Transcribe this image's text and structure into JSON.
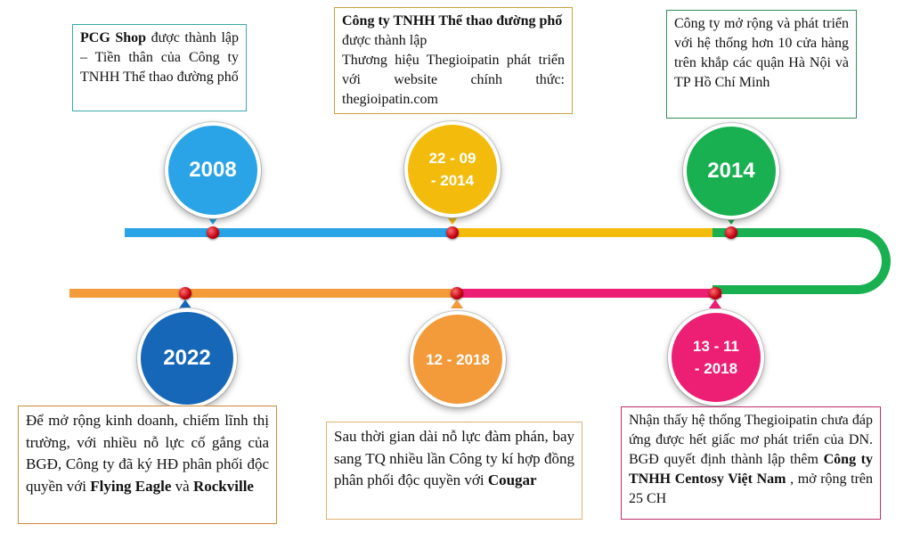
{
  "colors": {
    "blue_light": "#2aa4e6",
    "yellow": "#f3bc0d",
    "green": "#18b050",
    "magenta": "#ec1f74",
    "orange": "#f39a3a",
    "navy": "#1667b8",
    "dot_red": "#c00010"
  },
  "milestones": [
    {
      "label": "2008",
      "box": {
        "lead_bold": "PCG Shop",
        "lead_rest": " được thành lập – Tiền thân của Công ty TNHH Thể thao đường phố"
      }
    },
    {
      "label": "22 - 09 - 2014",
      "label_line1": "22 - 09",
      "label_line2": "- 2014",
      "box": {
        "title_bold": "Công ty TNHH Thể thao đường phố",
        "title_rest": " được thành lập",
        "body": "Thương hiệu Thegioipatin phát triển với website chính thức: thegioipatin.com"
      }
    },
    {
      "label": "2014",
      "box": {
        "text": "Công ty mở rộng và phát triển với hệ thống hơn 10 cửa hàng trên khắp các quận Hà Nội và TP Hồ Chí Minh"
      }
    },
    {
      "label": "2022",
      "box": {
        "text": "Để mở rộng kinh doanh, chiếm lĩnh thị trường, với nhiều nỗ lực cố gắng của BGĐ, Công ty đã ký HĐ phân phối độc quyền với ",
        "bold1": "Flying Eagle",
        "mid": " và ",
        "bold2": "Rockville"
      }
    },
    {
      "label": "12 - 2018",
      "box": {
        "text": "Sau thời gian dài nỗ lực đàm phán, bay sang TQ nhiều lần Công ty kí hợp đồng phân phối độc quyền với ",
        "bold": "Cougar"
      }
    },
    {
      "label": "13 - 11 - 2018",
      "label_line1": "13 - 11",
      "label_line2": "- 2018",
      "box": {
        "text": "Nhận thấy hệ thống Thegioipatin chưa đáp ứng được hết giấc mơ phát triển của DN. BGĐ quyết định thành lập thêm ",
        "bold": "Công ty TNHH Centosy Việt Nam",
        "tail": " , mở rộng trên 25 CH"
      }
    }
  ]
}
